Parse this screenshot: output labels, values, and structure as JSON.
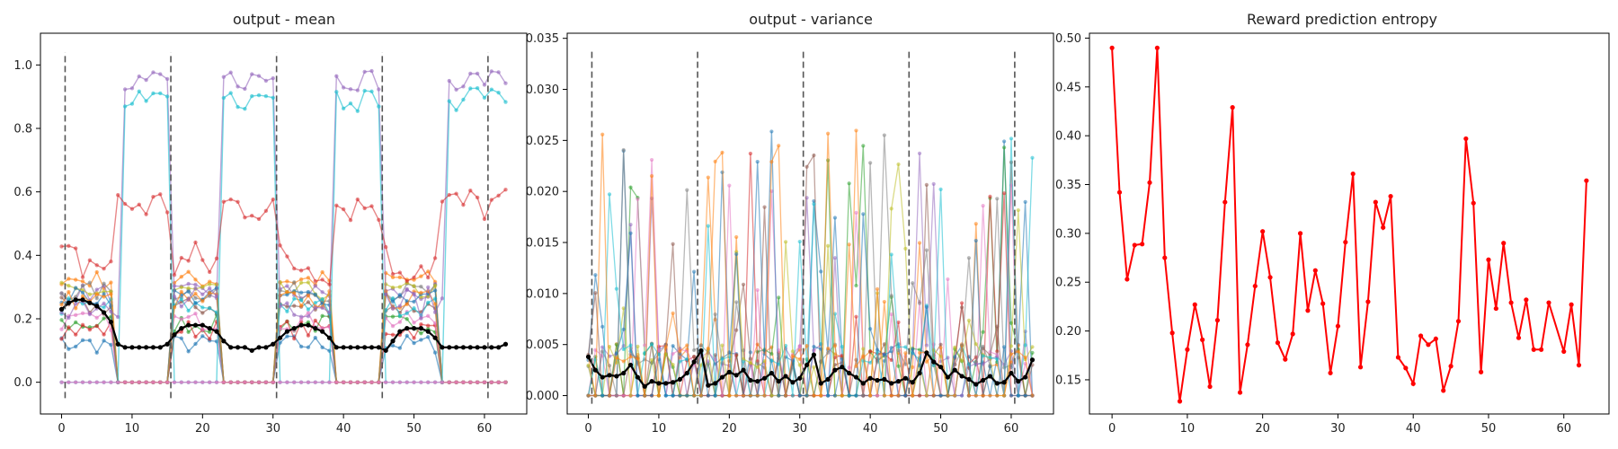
{
  "colors": {
    "palette": [
      "#1f77b4",
      "#ff7f0e",
      "#2ca02c",
      "#d62728",
      "#9467bd",
      "#8c564b",
      "#e377c2",
      "#7f7f7f",
      "#bcbd22",
      "#17becf"
    ],
    "mean_line": "#000000",
    "entropy_line": "#ff0000",
    "dashed": "#555555"
  },
  "chart_data": [
    {
      "type": "line",
      "title": "output - mean",
      "xlabel": "",
      "ylabel": "",
      "xlim": [
        -3,
        66
      ],
      "ylim": [
        -0.1,
        1.1
      ],
      "xticks": [
        0,
        10,
        20,
        30,
        40,
        50,
        60
      ],
      "yticks": [
        0.0,
        0.2,
        0.4,
        0.6,
        0.8,
        1.0
      ],
      "ytick_labels": [
        "0.0",
        "0.2",
        "0.4",
        "0.6",
        "0.8",
        "1.0"
      ],
      "grid": false,
      "vlines": [
        0.5,
        15.5,
        30.5,
        45.5,
        60.5
      ],
      "vline_range": [
        -0.05,
        1.04
      ],
      "mean_series": [
        0.23,
        0.25,
        0.26,
        0.26,
        0.25,
        0.24,
        0.22,
        0.19,
        0.12,
        0.11,
        0.11,
        0.11,
        0.11,
        0.11,
        0.11,
        0.12,
        0.15,
        0.17,
        0.18,
        0.18,
        0.18,
        0.17,
        0.16,
        0.13,
        0.11,
        0.11,
        0.11,
        0.1,
        0.11,
        0.11,
        0.12,
        0.14,
        0.16,
        0.17,
        0.18,
        0.18,
        0.17,
        0.16,
        0.14,
        0.11,
        0.11,
        0.11,
        0.11,
        0.11,
        0.11,
        0.11,
        0.1,
        0.13,
        0.16,
        0.17,
        0.17,
        0.17,
        0.16,
        0.14,
        0.11,
        0.11,
        0.11,
        0.11,
        0.11,
        0.11,
        0.11,
        0.11,
        0.11,
        0.12
      ]
    },
    {
      "type": "line",
      "title": "output - variance",
      "xlabel": "",
      "ylabel": "",
      "xlim": [
        -3,
        66
      ],
      "ylim": [
        -0.0018,
        0.0355
      ],
      "xticks": [
        0,
        10,
        20,
        30,
        40,
        50,
        60
      ],
      "yticks": [
        0.0,
        0.005,
        0.01,
        0.015,
        0.02,
        0.025,
        0.03,
        0.035
      ],
      "ytick_labels": [
        "0.000",
        "0.005",
        "0.010",
        "0.015",
        "0.020",
        "0.025",
        "0.030",
        "0.035"
      ],
      "grid": false,
      "vlines": [
        0.5,
        15.5,
        30.5,
        45.5,
        60.5
      ],
      "vline_range": [
        -0.0008,
        0.0338
      ],
      "mean_series": [
        0.0038,
        0.0025,
        0.0018,
        0.002,
        0.0019,
        0.0022,
        0.003,
        0.0018,
        0.0009,
        0.0014,
        0.0012,
        0.0012,
        0.0013,
        0.0016,
        0.0022,
        0.0033,
        0.0044,
        0.001,
        0.0012,
        0.0018,
        0.0023,
        0.002,
        0.0025,
        0.0015,
        0.0014,
        0.0017,
        0.0022,
        0.0014,
        0.0019,
        0.0013,
        0.0017,
        0.003,
        0.004,
        0.0012,
        0.0016,
        0.0025,
        0.0028,
        0.0022,
        0.0018,
        0.0012,
        0.0017,
        0.0015,
        0.0016,
        0.0012,
        0.0014,
        0.0017,
        0.0013,
        0.0022,
        0.0042,
        0.0033,
        0.0028,
        0.0018,
        0.0025,
        0.0019,
        0.0016,
        0.0011,
        0.0015,
        0.0019,
        0.0012,
        0.0013,
        0.0022,
        0.0014,
        0.0018,
        0.0035
      ]
    },
    {
      "type": "line",
      "title": "Reward prediction entropy",
      "xlabel": "",
      "ylabel": "",
      "xlim": [
        -3,
        66
      ],
      "ylim": [
        0.115,
        0.505
      ],
      "xticks": [
        0,
        10,
        20,
        30,
        40,
        50,
        60
      ],
      "yticks": [
        0.15,
        0.2,
        0.25,
        0.3,
        0.35,
        0.4,
        0.45,
        0.5
      ],
      "ytick_labels": [
        "0.15",
        "0.20",
        "0.25",
        "0.30",
        "0.35",
        "0.40",
        "0.45",
        "0.50"
      ],
      "grid": false,
      "series": [
        {
          "x": [
            0,
            1,
            2,
            3,
            4,
            5,
            6,
            7,
            8,
            9,
            10,
            11,
            12,
            13,
            14,
            15,
            16,
            17,
            18,
            19,
            20,
            21,
            22,
            23,
            24,
            25,
            26,
            27,
            28,
            29,
            30,
            31,
            32,
            33,
            34,
            35,
            36,
            37,
            38,
            39,
            40,
            41,
            42,
            43,
            44,
            45,
            46,
            47,
            48,
            49,
            50,
            51,
            52,
            53,
            54,
            55,
            56,
            57,
            58,
            60,
            61,
            62,
            63
          ],
          "values": [
            0.49,
            0.342,
            0.253,
            0.288,
            0.289,
            0.352,
            0.49,
            0.275,
            0.198,
            0.128,
            0.181,
            0.227,
            0.191,
            0.143,
            0.211,
            0.332,
            0.429,
            0.137,
            0.186,
            0.246,
            0.302,
            0.255,
            0.188,
            0.171,
            0.197,
            0.3,
            0.221,
            0.262,
            0.228,
            0.157,
            0.205,
            0.291,
            0.361,
            0.163,
            0.23,
            0.332,
            0.306,
            0.338,
            0.173,
            0.162,
            0.146,
            0.195,
            0.186,
            0.192,
            0.139,
            0.164,
            0.21,
            0.397,
            0.331,
            0.158,
            0.273,
            0.223,
            0.29,
            0.229,
            0.193,
            0.232,
            0.181,
            0.181,
            0.229,
            0.179,
            0.227,
            0.165,
            0.354
          ]
        }
      ]
    }
  ]
}
